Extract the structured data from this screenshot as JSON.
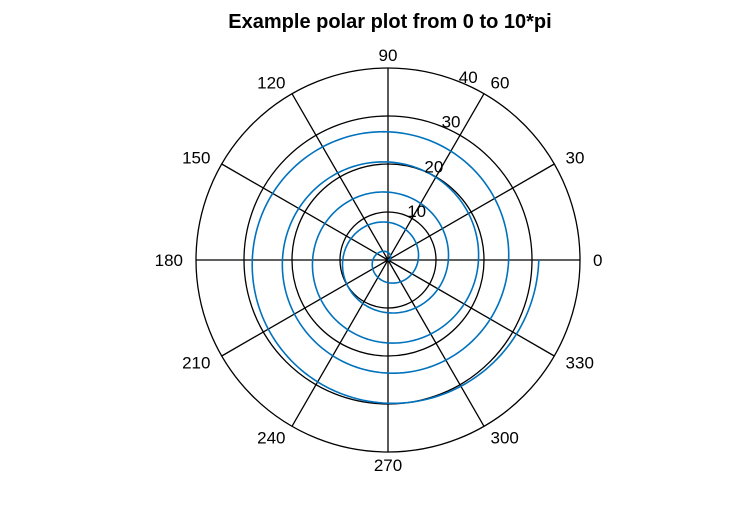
{
  "chart_data": {
    "type": "line",
    "subtype": "polar",
    "title": "Example polar plot from 0 to 10*pi",
    "theta_range": [
      "0",
      "10*pi"
    ],
    "r_range": [
      0,
      40
    ],
    "r_ticks": [
      10,
      20,
      30,
      40
    ],
    "r_tick_labels": [
      "10",
      "20",
      "30",
      "40"
    ],
    "theta_ticks_deg": [
      0,
      30,
      60,
      90,
      120,
      150,
      180,
      210,
      240,
      270,
      300,
      330
    ],
    "theta_tick_labels": [
      "0",
      "30",
      "60",
      "90",
      "120",
      "150",
      "180",
      "210",
      "240",
      "270",
      "300",
      "330"
    ],
    "grid": true,
    "series": [
      {
        "formula": "r = theta",
        "theta_start": 0,
        "theta_end": 31.4159,
        "color": "#0072bd"
      }
    ]
  }
}
